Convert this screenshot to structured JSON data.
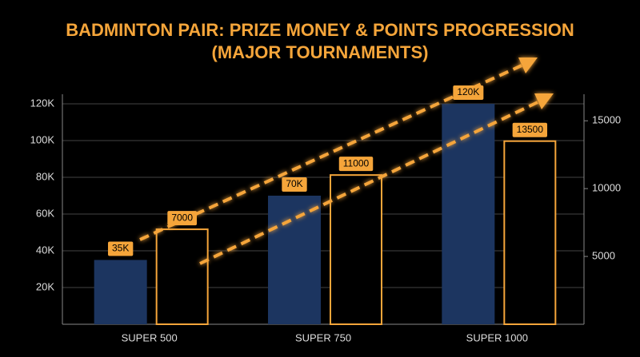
{
  "chart_data": {
    "type": "bar",
    "title": "BADMINTON PAIR: PRIZE MONEY & POINTS PROGRESSION (MAJOR TOURNAMENTS)",
    "categories": [
      "SUPER 500",
      "SUPER 750",
      "SUPER 1000"
    ],
    "series": [
      {
        "color": "#1c3560",
        "values": [
          35000,
          70000,
          120000
        ],
        "value_labels": [
          "35K",
          "70K",
          "120K"
        ]
      },
      {
        "color": "#f5a53a",
        "axis": "y2",
        "values": [
          7000,
          11000,
          13500
        ],
        "value_labels": [
          "7000",
          "11000",
          "13500"
        ]
      }
    ],
    "ylim": [
      0,
      120000
    ],
    "yticks": [
      {
        "value": 20000,
        "label": "20K"
      },
      {
        "value": 40000,
        "label": "40K"
      },
      {
        "value": 60000,
        "label": "60K"
      },
      {
        "value": 80000,
        "label": "80K"
      },
      {
        "value": 100000,
        "label": "100K"
      },
      {
        "value": 120000,
        "label": "120K"
      }
    ],
    "y2lim": [
      0,
      16250
    ],
    "y2ticks": [
      5000,
      10000,
      15000
    ],
    "grid": true
  }
}
